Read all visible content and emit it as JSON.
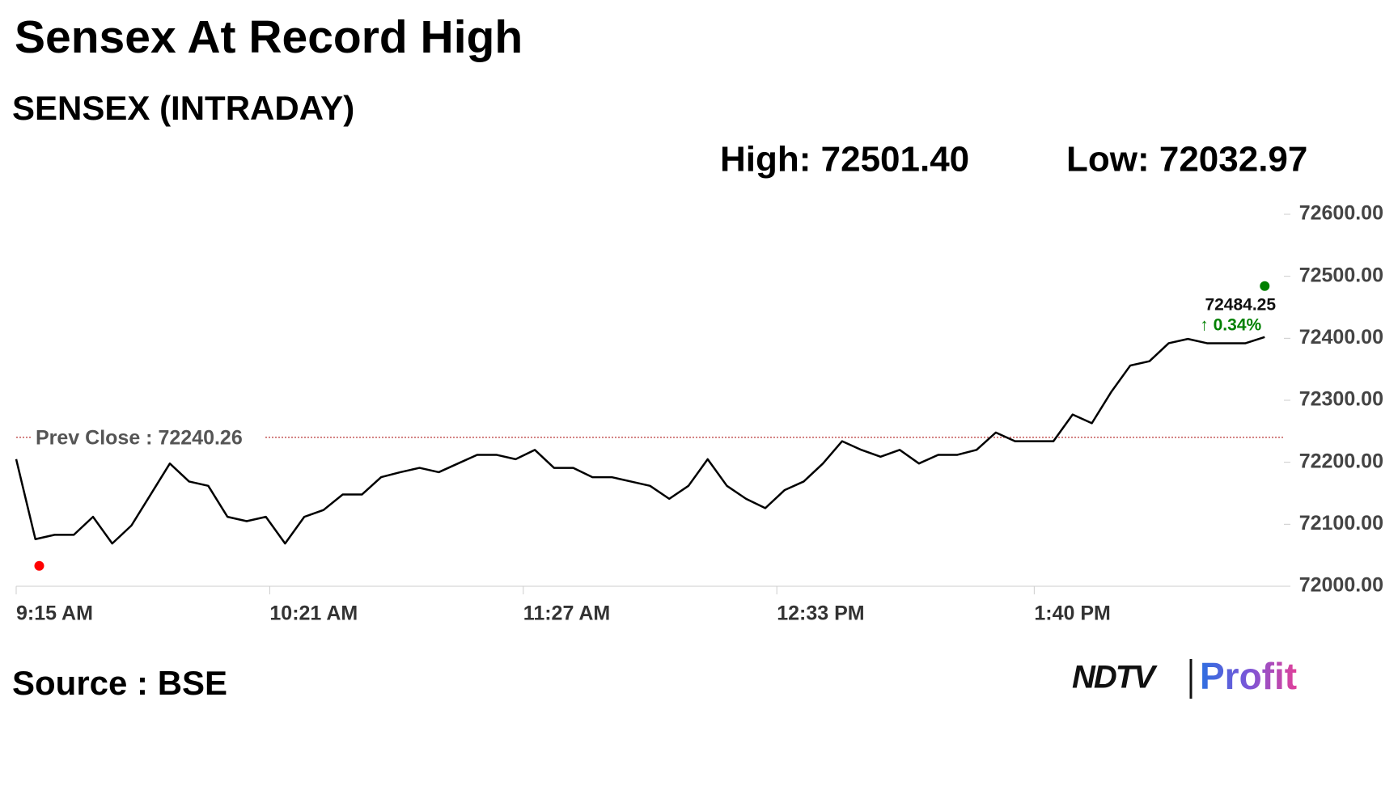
{
  "header": {
    "title": "Sensex At Record High",
    "subtitle": "SENSEX (INTRADAY)",
    "high_label": "High: 72501.40",
    "low_label": "Low: 72032.97"
  },
  "chart_data": {
    "type": "line",
    "x": [
      555,
      560,
      565,
      570,
      575,
      580,
      585,
      590,
      595,
      600,
      605,
      610,
      615,
      620,
      625,
      630,
      635,
      640,
      645,
      650,
      655,
      660,
      665,
      670,
      675,
      680,
      685,
      690,
      695,
      700,
      705,
      710,
      715,
      720,
      725,
      730,
      735,
      740,
      745,
      750,
      755,
      760,
      765,
      770,
      775,
      780,
      785,
      790,
      795,
      800,
      805,
      810,
      815,
      820,
      825,
      830,
      835,
      840,
      845,
      850,
      855,
      860,
      865,
      870,
      875,
      880
    ],
    "series": [
      {
        "name": "SENSEX",
        "color": "#000000",
        "values": [
          72205,
          72076,
          72083,
          72083,
          72112,
          72069,
          72098,
          72148,
          72198,
          72169,
          72162,
          72112,
          72105,
          72112,
          72069,
          72112,
          72123,
          72148,
          72148,
          72176,
          72184,
          72191,
          72184,
          72198,
          72212,
          72212,
          72205,
          72220,
          72191,
          72191,
          72176,
          72176,
          72169,
          72162,
          72141,
          72162,
          72205,
          72162,
          72141,
          72126,
          72155,
          72169,
          72198,
          72234,
          72220,
          72209,
          72220,
          72198,
          72212,
          72212,
          72220,
          72248,
          72234,
          72234,
          72234,
          72277,
          72263,
          72313,
          72356,
          72363,
          72392,
          72399,
          72392,
          72392,
          72392,
          72402
        ]
      }
    ],
    "xlim": [
      555,
      885
    ],
    "xticks": [
      {
        "value": 555,
        "label": "9:15 AM"
      },
      {
        "value": 621,
        "label": "10:21 AM"
      },
      {
        "value": 687,
        "label": "11:27 AM"
      },
      {
        "value": 753,
        "label": "12:33 PM"
      },
      {
        "value": 820,
        "label": "1:40 PM"
      }
    ],
    "ylim": [
      72000,
      72600
    ],
    "yticks": [
      {
        "value": 72000,
        "label": "72000.00"
      },
      {
        "value": 72100,
        "label": "72100.00"
      },
      {
        "value": 72200,
        "label": "72200.00"
      },
      {
        "value": 72300,
        "label": "72300.00"
      },
      {
        "value": 72400,
        "label": "72400.00"
      },
      {
        "value": 72500,
        "label": "72500.00"
      },
      {
        "value": 72600,
        "label": "72600.00"
      }
    ],
    "prev_close": 72240.26,
    "prev_close_label": "Prev Close : 72240.26",
    "prev_close_color": "#b22222",
    "low_point": {
      "x": 561,
      "value": 72032.97,
      "color": "#ff0000"
    },
    "current_point": {
      "x": 880,
      "value": 72484.25,
      "color": "#008000",
      "change_label": "↑ 0.34%"
    }
  },
  "footer": {
    "source": "Source : BSE",
    "logo_left": "NDTV",
    "logo_right": "Profit"
  }
}
